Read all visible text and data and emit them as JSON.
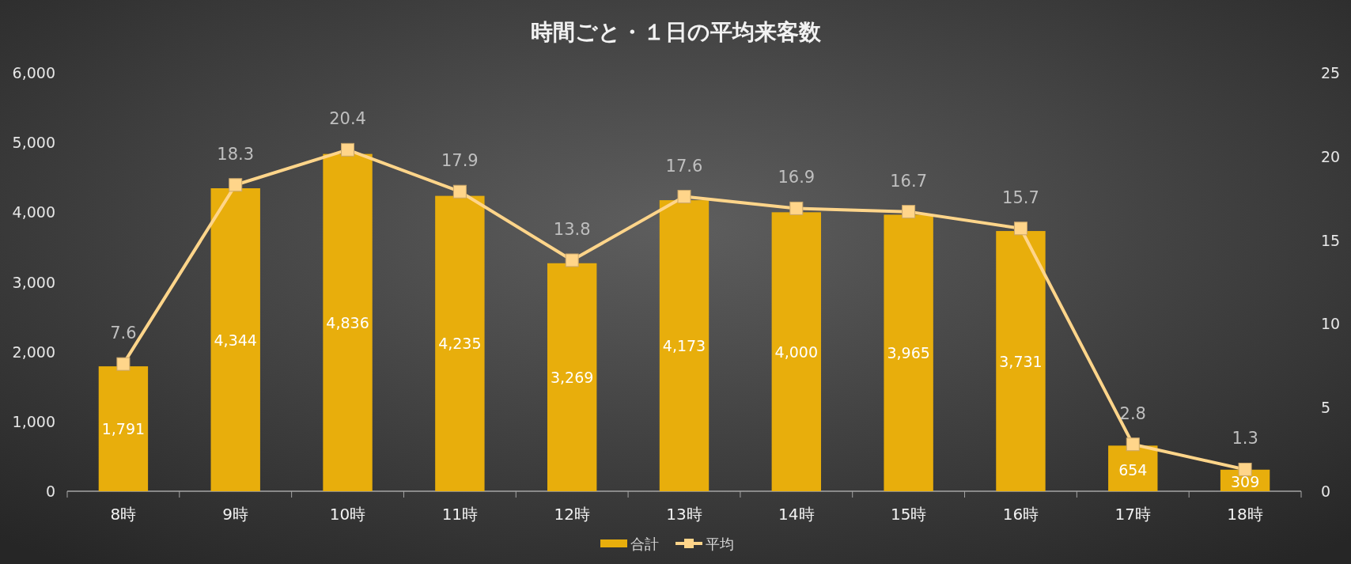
{
  "chart_data": {
    "type": "bar",
    "title": "時間ごと・１日の平均来客数",
    "categories": [
      "8時",
      "9時",
      "10時",
      "11時",
      "12時",
      "13時",
      "14時",
      "15時",
      "16時",
      "17時",
      "18時"
    ],
    "series": [
      {
        "name": "合計",
        "type": "bar",
        "color": "#e8ae0c",
        "values": [
          1791,
          4344,
          4836,
          4235,
          3269,
          4173,
          4000,
          3965,
          3731,
          654,
          309
        ],
        "value_labels": [
          "1,791",
          "4,344",
          "4,836",
          "4,235",
          "3,269",
          "4,173",
          "4,000",
          "3,965",
          "3,731",
          "654",
          "309"
        ]
      },
      {
        "name": "平均",
        "type": "line",
        "axis": "y2",
        "color": "#ffd58a",
        "marker": "square",
        "line_style": "solid",
        "values": [
          7.6,
          18.3,
          20.4,
          17.9,
          13.8,
          17.6,
          16.9,
          16.7,
          15.7,
          2.8,
          1.3
        ],
        "value_labels": [
          "7.6",
          "18.3",
          "20.4",
          "17.9",
          "13.8",
          "17.6",
          "16.9",
          "16.7",
          "15.7",
          "2.8",
          "1.3"
        ]
      }
    ],
    "ylim": [
      0,
      6000
    ],
    "yticks": [
      0,
      {
        "value": 1000,
        "label": "1,000"
      },
      {
        "value": 2000,
        "label": "2,000"
      },
      {
        "value": 3000,
        "label": "3,000"
      },
      {
        "value": 4000,
        "label": "4,000"
      },
      {
        "value": 5000,
        "label": "5,000"
      },
      {
        "value": 6000,
        "label": "6,000"
      }
    ],
    "y2lim": [
      0,
      25
    ],
    "y2ticks": [
      0,
      5,
      10,
      15,
      20,
      25
    ],
    "grid": false,
    "legend": "bottom"
  }
}
